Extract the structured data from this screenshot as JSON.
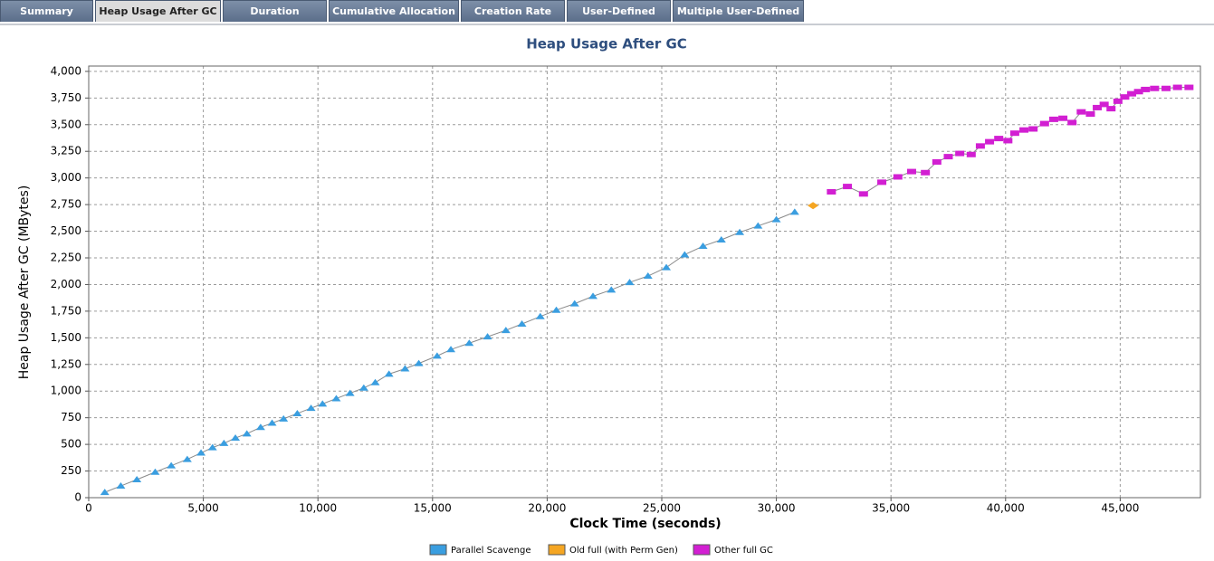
{
  "tabs": [
    "Summary",
    "Heap Usage After GC",
    "Duration",
    "Cumulative Allocation",
    "Creation Rate",
    "User-Defined",
    "Multiple User-Defined"
  ],
  "active_tab": 1,
  "chart_data": {
    "type": "scatter",
    "title": "Heap Usage After GC",
    "x_label": "Clock Time  (seconds)",
    "y_label": "Heap Usage After GC  (MBytes)",
    "xlim": [
      0,
      48500
    ],
    "ylim": [
      0,
      4050
    ],
    "grid": true,
    "line_color": "#8a8a8a",
    "xticks": [
      0,
      {
        "value": 5000,
        "label": "5,000"
      },
      {
        "value": 10000,
        "label": "10,000"
      },
      {
        "value": 15000,
        "label": "15,000"
      },
      {
        "value": 20000,
        "label": "20,000"
      },
      {
        "value": 25000,
        "label": "25,000"
      },
      {
        "value": 30000,
        "label": "30,000"
      },
      {
        "value": 35000,
        "label": "35,000"
      },
      {
        "value": 40000,
        "label": "40,000"
      },
      {
        "value": 45000,
        "label": "45,000"
      }
    ],
    "yticks": [
      0,
      250,
      500,
      750,
      {
        "value": 1000,
        "label": "1,000"
      },
      {
        "value": 1250,
        "label": "1,250"
      },
      {
        "value": 1500,
        "label": "1,500"
      },
      {
        "value": 1750,
        "label": "1,750"
      },
      {
        "value": 2000,
        "label": "2,000"
      },
      {
        "value": 2250,
        "label": "2,250"
      },
      {
        "value": 2500,
        "label": "2,500"
      },
      {
        "value": 2750,
        "label": "2,750"
      },
      {
        "value": 3000,
        "label": "3,000"
      },
      {
        "value": 3250,
        "label": "3,250"
      },
      {
        "value": 3500,
        "label": "3,500"
      },
      {
        "value": 3750,
        "label": "3,750"
      },
      {
        "value": 4000,
        "label": "4,000"
      }
    ],
    "series": [
      {
        "name": "Parallel Scavenge",
        "color": "#3a9ee0",
        "marker": "triangle",
        "x": [
          700,
          1400,
          2100,
          2900,
          3600,
          4300,
          4900,
          5400,
          5900,
          6400,
          6900,
          7500,
          8000,
          8500,
          9100,
          9700,
          10200,
          10800,
          11400,
          12000,
          12500,
          13100,
          13800,
          14400,
          15200,
          15800,
          16600,
          17400,
          18200,
          18900,
          19700,
          20400,
          21200,
          22000,
          22800,
          23600,
          24400,
          25200,
          26000,
          26800,
          27600,
          28400,
          29200,
          30000,
          30800
        ],
        "values": [
          50,
          110,
          170,
          240,
          300,
          360,
          420,
          470,
          510,
          560,
          600,
          660,
          700,
          740,
          790,
          840,
          880,
          930,
          980,
          1030,
          1080,
          1160,
          1210,
          1260,
          1330,
          1390,
          1450,
          1510,
          1570,
          1630,
          1700,
          1760,
          1820,
          1890,
          1950,
          2020,
          2080,
          2160,
          2280,
          2360,
          2420,
          2490,
          2550,
          2610,
          2680
        ]
      },
      {
        "name": "Old full (with Perm Gen)",
        "color": "#f5a623",
        "marker": "diamond",
        "x": [
          31600
        ],
        "values": [
          2740
        ]
      },
      {
        "name": "Other full GC",
        "color": "#d21fd2",
        "marker": "square",
        "x": [
          32400,
          33100,
          33800,
          34600,
          35300,
          35900,
          36500,
          37000,
          37500,
          38000,
          38500,
          38900,
          39300,
          39700,
          40100,
          40400,
          40800,
          41200,
          41700,
          42100,
          42500,
          42900,
          43300,
          43700,
          44000,
          44300,
          44600,
          44900,
          45200,
          45500,
          45800,
          46100,
          46500,
          47000,
          47500,
          48000
        ],
        "values": [
          2870,
          2920,
          2850,
          2960,
          3010,
          3060,
          3050,
          3150,
          3200,
          3230,
          3220,
          3300,
          3340,
          3370,
          3350,
          3420,
          3450,
          3460,
          3510,
          3550,
          3560,
          3520,
          3620,
          3600,
          3660,
          3690,
          3650,
          3720,
          3760,
          3790,
          3810,
          3830,
          3840,
          3840,
          3850,
          3850
        ]
      }
    ]
  }
}
